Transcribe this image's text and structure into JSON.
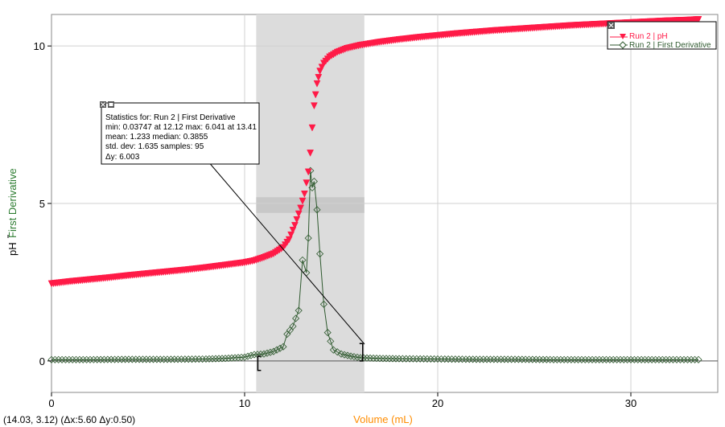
{
  "chart_data": {
    "type": "scatter",
    "xlabel": "Volume (mL)",
    "ylabels": [
      "pH",
      "First Derivative"
    ],
    "xlim": [
      0,
      34.5
    ],
    "ylim": [
      -1,
      11
    ],
    "x_ticks": [
      0,
      10,
      20,
      30
    ],
    "y_ticks": [
      0,
      5,
      10
    ],
    "grid": true,
    "legend_position": "top-right",
    "selection": {
      "x_start": 10.6,
      "x_end": 16.2
    },
    "series": [
      {
        "name": "Run 2 | pH",
        "color": "#ff1a47",
        "marker": "triangle-down",
        "points": [
          [
            0,
            2.45
          ],
          [
            1,
            2.52
          ],
          [
            2,
            2.58
          ],
          [
            3,
            2.64
          ],
          [
            4,
            2.71
          ],
          [
            5,
            2.77
          ],
          [
            6,
            2.83
          ],
          [
            7,
            2.89
          ],
          [
            8,
            2.96
          ],
          [
            9,
            3.04
          ],
          [
            10,
            3.12
          ],
          [
            10.5,
            3.18
          ],
          [
            11,
            3.28
          ],
          [
            11.5,
            3.4
          ],
          [
            12,
            3.6
          ],
          [
            12.3,
            3.85
          ],
          [
            12.6,
            4.3
          ],
          [
            12.9,
            4.85
          ],
          [
            13.1,
            5.3
          ],
          [
            13.3,
            6.0
          ],
          [
            13.4,
            6.6
          ],
          [
            13.5,
            7.4
          ],
          [
            13.6,
            8.1
          ],
          [
            13.75,
            8.8
          ],
          [
            13.9,
            9.2
          ],
          [
            14.1,
            9.45
          ],
          [
            14.4,
            9.65
          ],
          [
            14.8,
            9.8
          ],
          [
            15.3,
            9.92
          ],
          [
            16,
            10.02
          ],
          [
            17,
            10.12
          ],
          [
            18,
            10.2
          ],
          [
            19,
            10.27
          ],
          [
            20,
            10.33
          ],
          [
            21,
            10.39
          ],
          [
            22,
            10.44
          ],
          [
            23,
            10.49
          ],
          [
            24,
            10.53
          ],
          [
            25,
            10.57
          ],
          [
            26,
            10.61
          ],
          [
            27,
            10.65
          ],
          [
            28,
            10.68
          ],
          [
            29,
            10.71
          ],
          [
            30,
            10.74
          ],
          [
            31,
            10.77
          ],
          [
            32,
            10.8
          ],
          [
            33,
            10.82
          ],
          [
            33.5,
            10.84
          ]
        ]
      },
      {
        "name": "Run 2 | First Derivative",
        "color": "#2f5a2f",
        "marker": "diamond",
        "points": [
          [
            0,
            0.04
          ],
          [
            2,
            0.04
          ],
          [
            4,
            0.05
          ],
          [
            6,
            0.05
          ],
          [
            8,
            0.06
          ],
          [
            9,
            0.08
          ],
          [
            10,
            0.12
          ],
          [
            10.5,
            0.2
          ],
          [
            11,
            0.22
          ],
          [
            11.5,
            0.3
          ],
          [
            12,
            0.45
          ],
          [
            12.2,
            0.85
          ],
          [
            12.5,
            1.1
          ],
          [
            12.8,
            1.6
          ],
          [
            13.0,
            3.2
          ],
          [
            13.2,
            2.8
          ],
          [
            13.3,
            3.9
          ],
          [
            13.41,
            6.041
          ],
          [
            13.5,
            5.5
          ],
          [
            13.6,
            5.7
          ],
          [
            13.75,
            4.8
          ],
          [
            13.9,
            3.4
          ],
          [
            14.1,
            1.8
          ],
          [
            14.3,
            0.9
          ],
          [
            14.6,
            0.35
          ],
          [
            15,
            0.22
          ],
          [
            15.5,
            0.15
          ],
          [
            16,
            0.1
          ],
          [
            17,
            0.08
          ],
          [
            18,
            0.07
          ],
          [
            20,
            0.06
          ],
          [
            22,
            0.05
          ],
          [
            24,
            0.05
          ],
          [
            26,
            0.04
          ],
          [
            28,
            0.04
          ],
          [
            30,
            0.04
          ],
          [
            32,
            0.04
          ],
          [
            33.5,
            0.04
          ]
        ]
      }
    ],
    "annotation": {
      "title": "Statistics for: Run 2 | First Derivative",
      "lines": [
        "min: 0.03747 at 12.12 max: 6.041 at 13.41",
        "mean: 1.233 median: 0.3855",
        "std. dev: 1.635 samples: 95"
      ],
      "delta": "Δy: 6.003"
    }
  },
  "status": {
    "coords": "(14.03, 3.12) (Δx:5.60 Δy:0.50)"
  },
  "colors": {
    "ph": "#ff1a47",
    "derivative": "#2f5a2f",
    "selection": "#dcdcdc",
    "xlabel": "#ff8c00",
    "ylabel_derivative": "#2e7d32"
  }
}
